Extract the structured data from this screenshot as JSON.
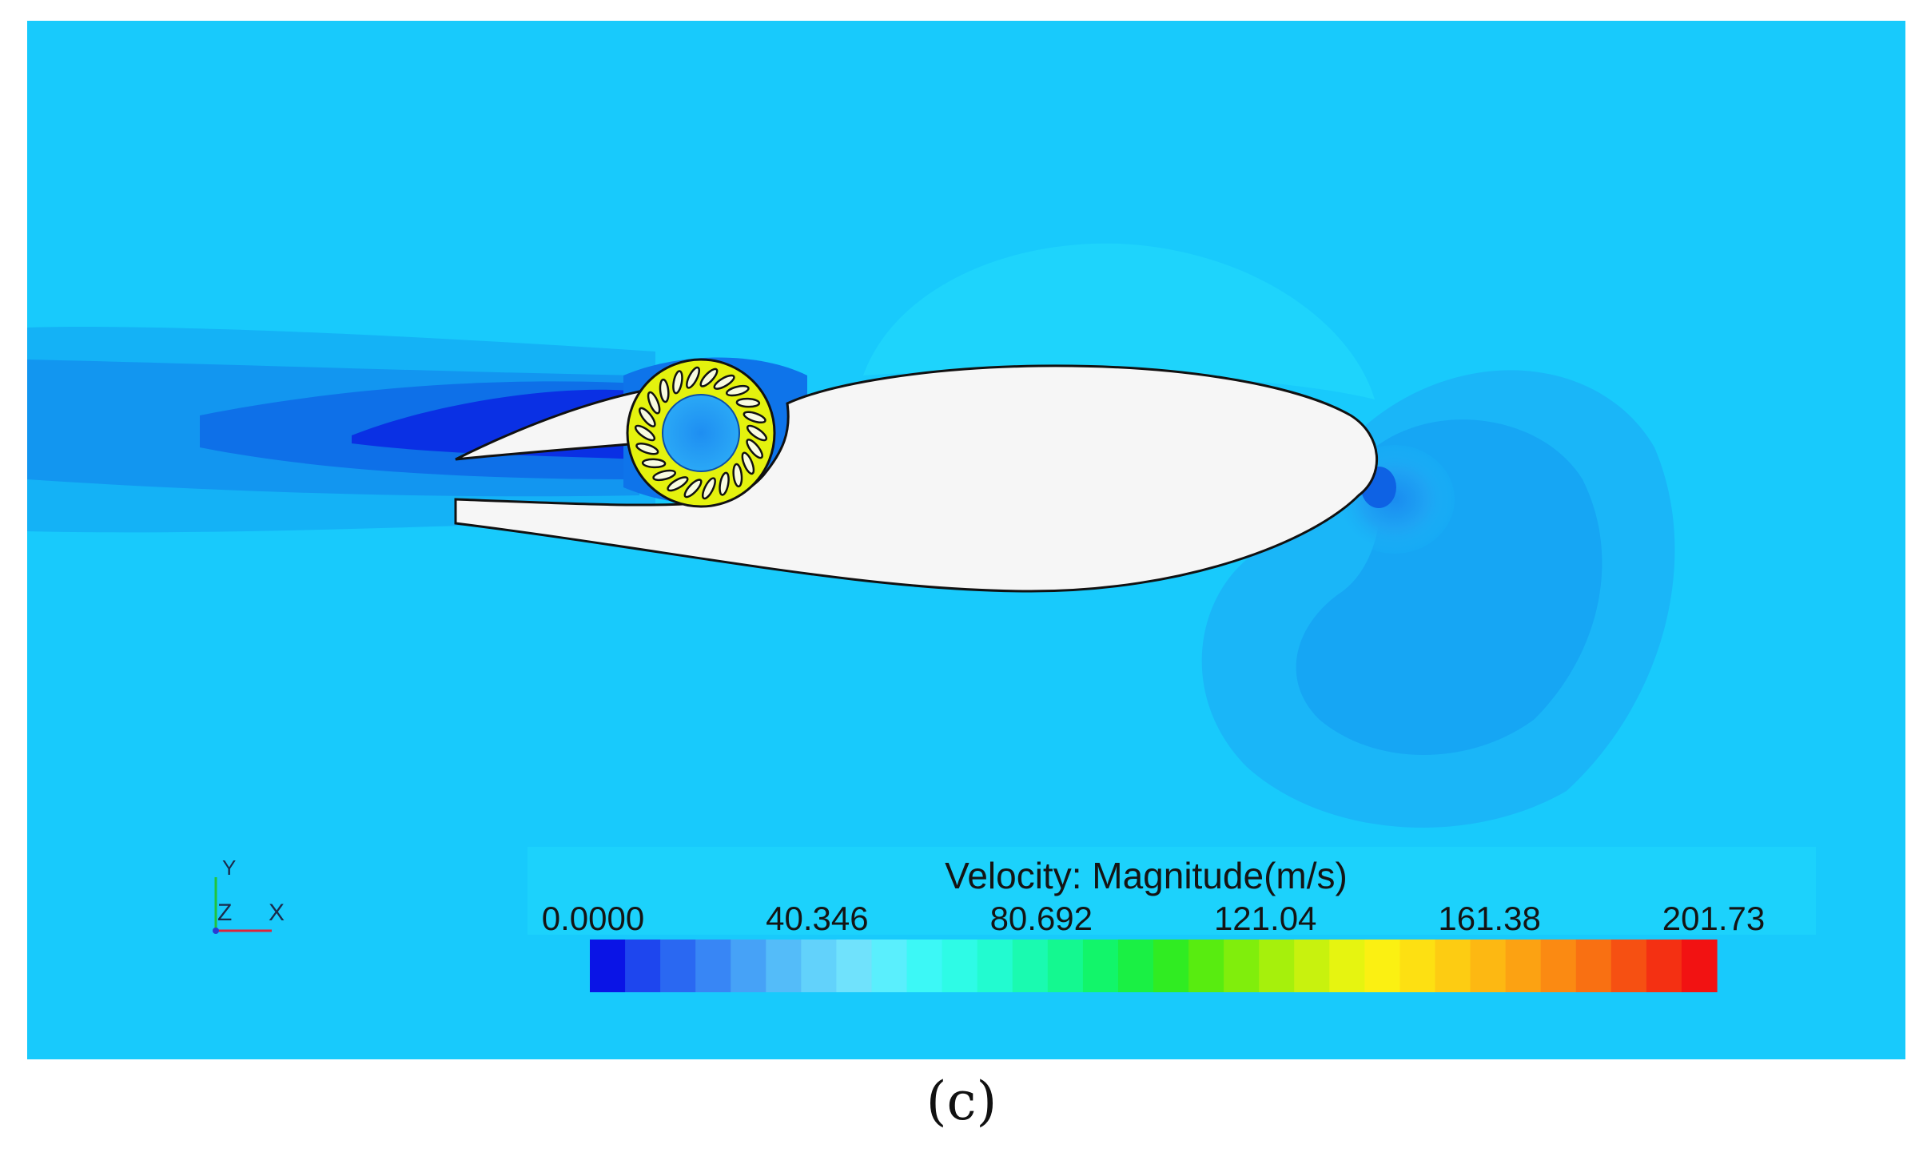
{
  "figure": {
    "caption": "(c)"
  },
  "axes_triad": {
    "y_label": "Y",
    "z_label": "Z",
    "x_label": "X"
  },
  "legend": {
    "title": "Velocity: Magnitude(m/s)",
    "ticks": [
      "0.0000",
      "40.346",
      "80.692",
      "121.04",
      "161.38",
      "201.73"
    ],
    "min": 0.0,
    "max": 201.73,
    "colors": [
      "#0a14e6",
      "#1e46ee",
      "#2a68f2",
      "#3886f5",
      "#46a2f7",
      "#54bcf9",
      "#62d2fb",
      "#70e2fc",
      "#5aeffd",
      "#3cf8f6",
      "#2efbe6",
      "#22fbd0",
      "#1afab0",
      "#14f890",
      "#12f56a",
      "#1af044",
      "#30ec22",
      "#58ec10",
      "#80ee0c",
      "#a6f00c",
      "#c8f20e",
      "#e6f410",
      "#fbf012",
      "#fde012",
      "#fdcc12",
      "#fdb812",
      "#fca212",
      "#fb8a12",
      "#f97012",
      "#f65012",
      "#f43012",
      "#f21212"
    ]
  },
  "colors": {
    "freestream": "#18cafc",
    "wake_dark": "#0a2fe6",
    "airfoil_fill": "#f6f6f6",
    "rotor_blades": "#e6f20e"
  }
}
